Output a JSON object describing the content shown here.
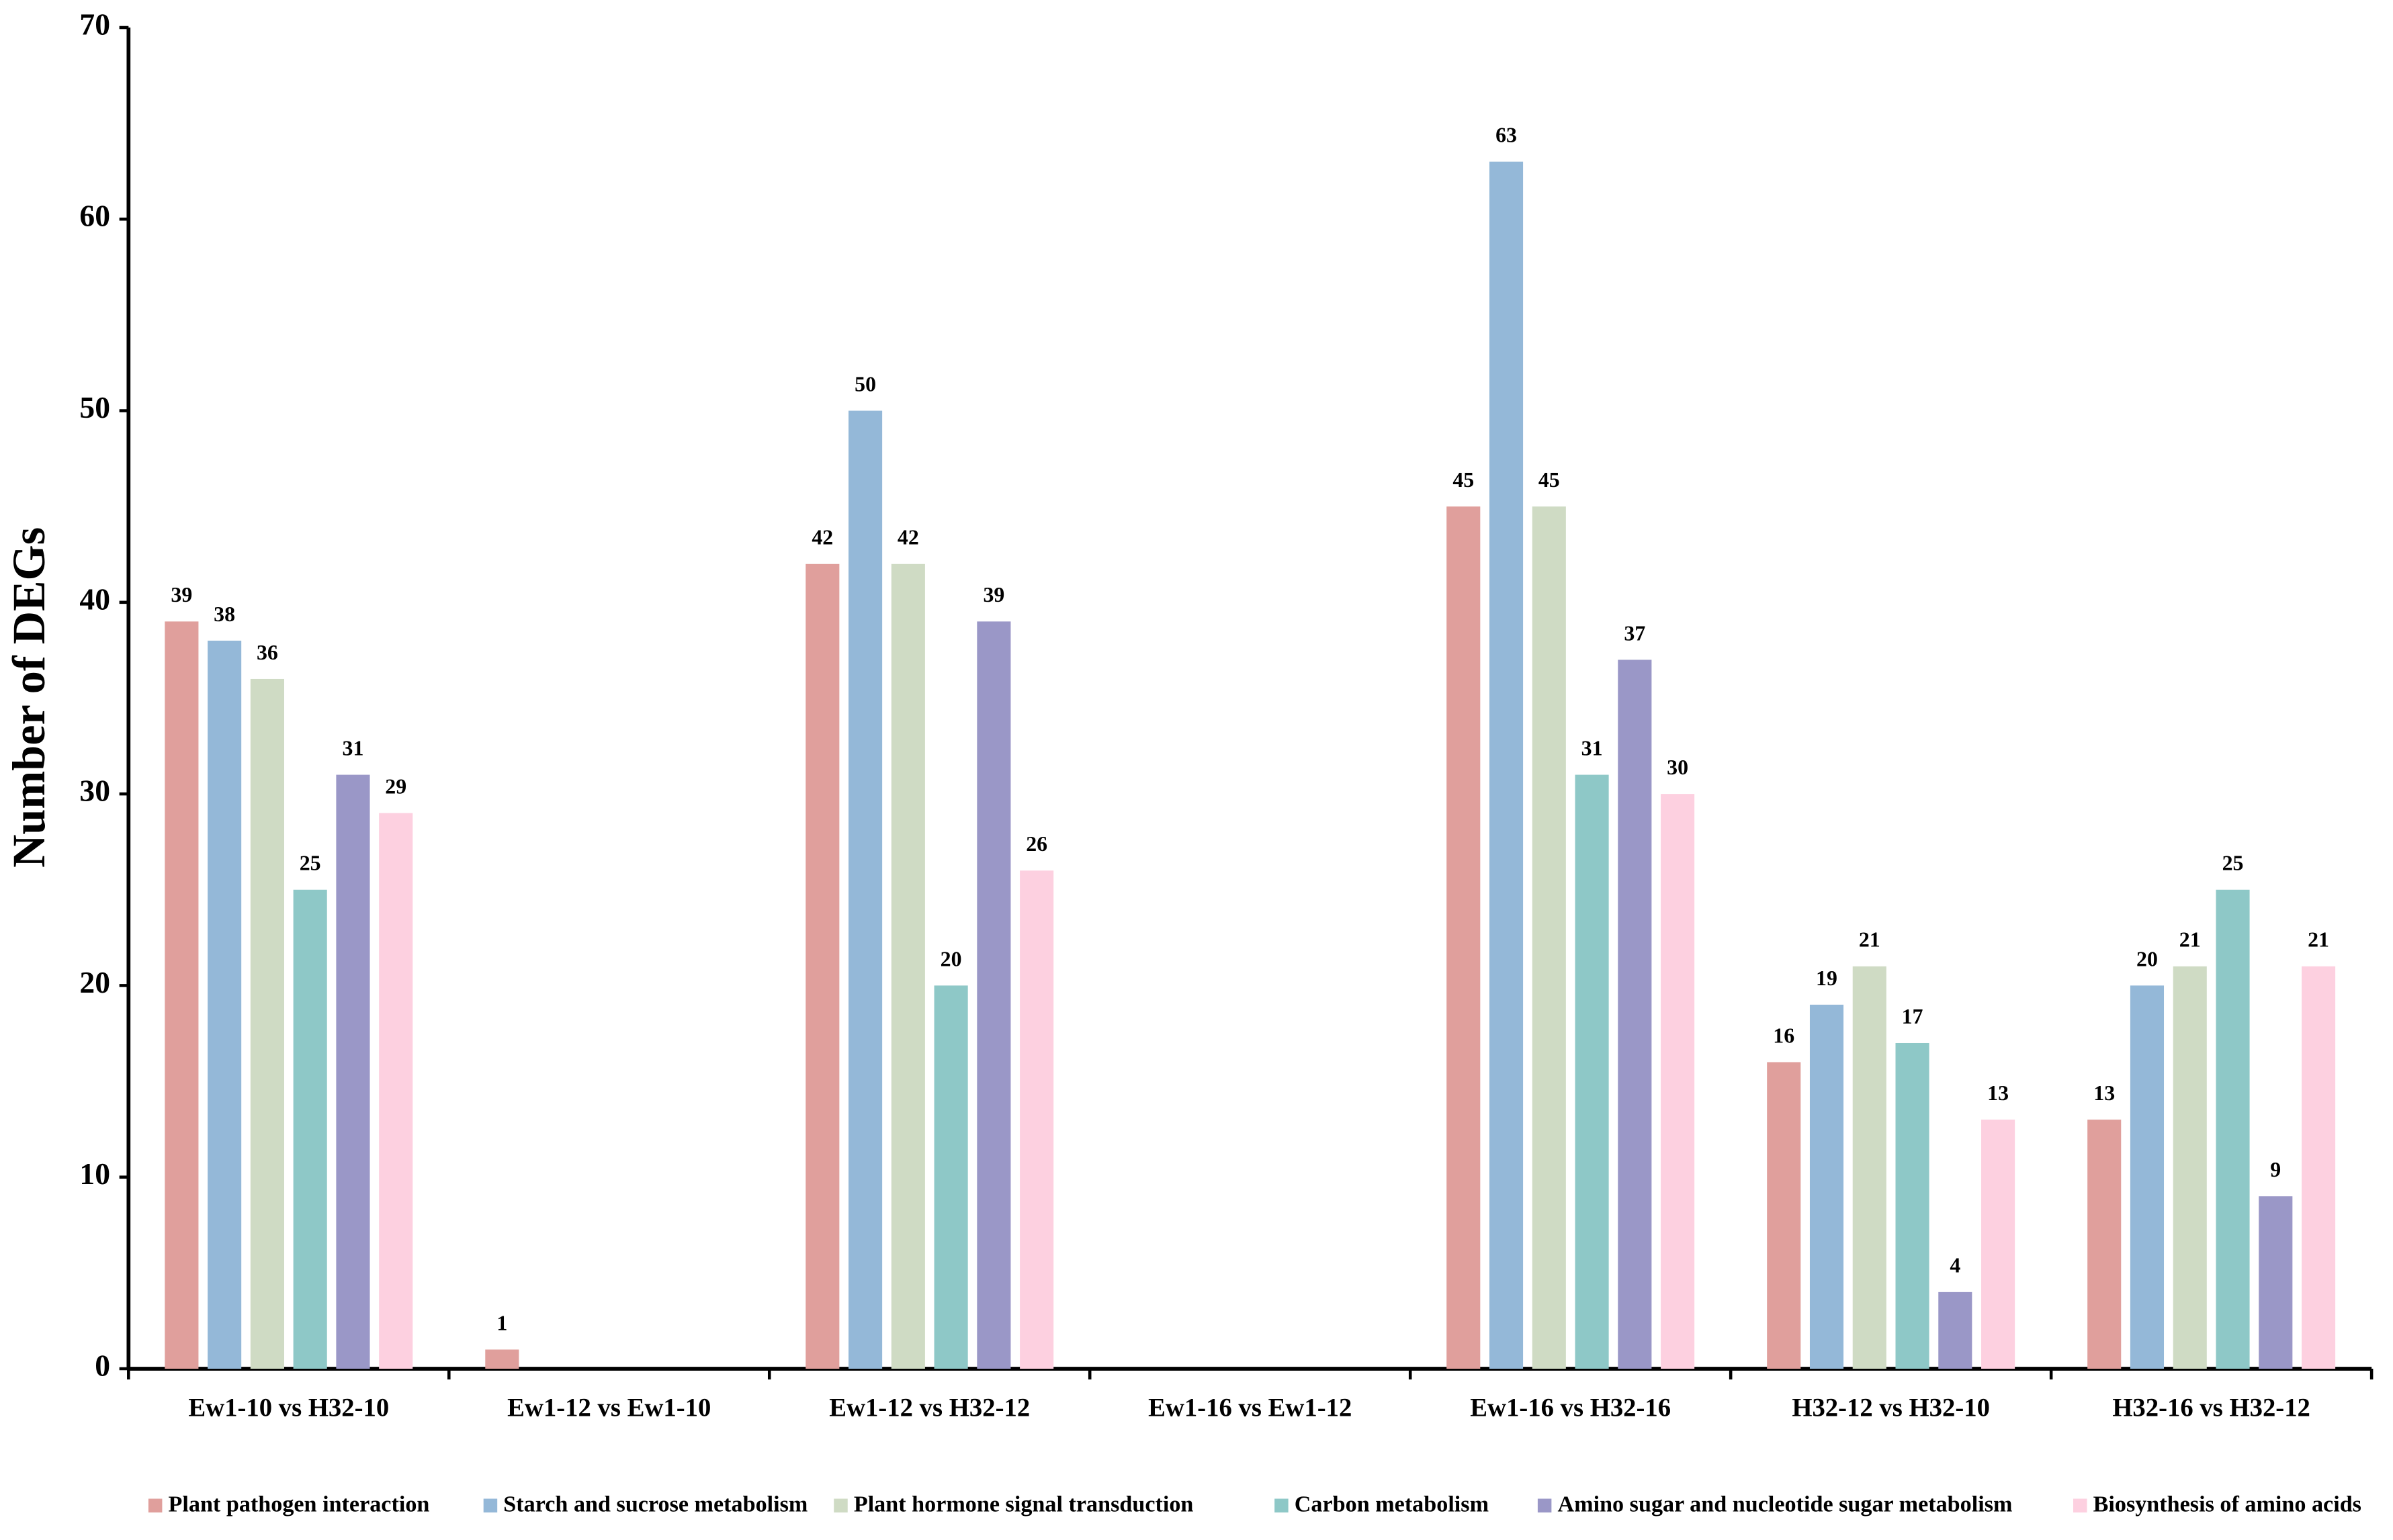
{
  "chart_data": {
    "type": "bar",
    "ylabel": "Number of DEGs",
    "categories": [
      "Ew1-10 vs H32-10",
      "Ew1-12 vs Ew1-10",
      "Ew1-12 vs H32-12",
      "Ew1-16 vs Ew1-12",
      "Ew1-16 vs H32-16",
      "H32-12 vs H32-10",
      "H32-16 vs H32-12"
    ],
    "series": [
      {
        "name": "Plant pathogen interaction",
        "color": "#e09f9c",
        "values": [
          39,
          1,
          42,
          null,
          45,
          16,
          13
        ]
      },
      {
        "name": "Starch and sucrose metabolism",
        "color": "#94b8d8",
        "values": [
          38,
          null,
          50,
          null,
          63,
          19,
          20
        ]
      },
      {
        "name": "Plant hormone signal transduction",
        "color": "#cfdbc4",
        "values": [
          36,
          null,
          42,
          null,
          45,
          21,
          21
        ]
      },
      {
        "name": "Carbon metabolism",
        "color": "#8ec8c7",
        "values": [
          25,
          null,
          20,
          null,
          31,
          17,
          25
        ]
      },
      {
        "name": "Amino sugar and nucleotide sugar metabolism",
        "color": "#9a97c7",
        "values": [
          31,
          null,
          39,
          null,
          37,
          4,
          9
        ]
      },
      {
        "name": "Biosynthesis of amino acids",
        "color": "#fdd0e0",
        "values": [
          29,
          null,
          26,
          null,
          30,
          13,
          21
        ]
      }
    ],
    "ylim": [
      0,
      70
    ],
    "yticks": [
      0,
      10,
      20,
      30,
      40,
      50,
      60,
      70
    ],
    "grid": false,
    "legend": "bottom"
  }
}
